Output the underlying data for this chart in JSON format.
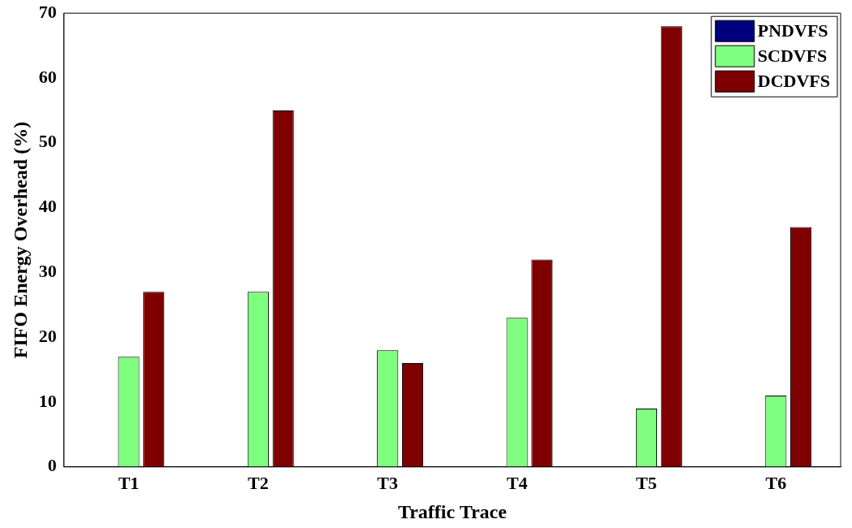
{
  "chart_data": {
    "type": "bar",
    "xlabel": "Traffic Trace",
    "ylabel": "FIFO Energy Overhead (%)",
    "categories": [
      "T1",
      "T2",
      "T3",
      "T4",
      "T5",
      "T6"
    ],
    "series": [
      {
        "name": "PNDVFS",
        "color": "#00007f",
        "values": [
          0,
          0,
          0,
          0,
          0,
          0
        ]
      },
      {
        "name": "SCDVFS",
        "color": "#7fff7f",
        "values": [
          17,
          27,
          18,
          23,
          9,
          11
        ]
      },
      {
        "name": "DCDVFS",
        "color": "#7f0000",
        "values": [
          27,
          55,
          16,
          32,
          68,
          37
        ]
      }
    ],
    "ylim": [
      0,
      70
    ],
    "yticks": [
      0,
      10,
      20,
      30,
      40,
      50,
      60,
      70
    ],
    "grid": false,
    "legend": "top right"
  }
}
